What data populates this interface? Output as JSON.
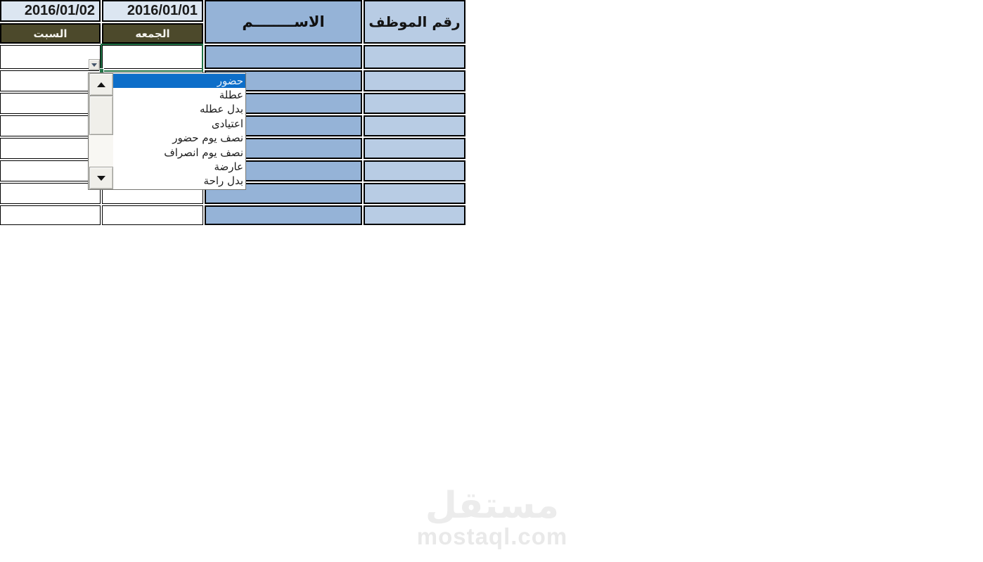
{
  "table": {
    "employee_number_header": "رقم الموظف",
    "name_header": "الاســــــــم",
    "day1": {
      "date": "2016/01/01",
      "name": "الجمعه"
    },
    "day2": {
      "date": "2016/01/02",
      "name": "السبت"
    },
    "data_rows": 8
  },
  "dropdown": {
    "selected_index": 0,
    "items": [
      {
        "label": "حضور"
      },
      {
        "label": "عطلة"
      },
      {
        "label": "بدل عطله"
      },
      {
        "label": "اعتيادى"
      },
      {
        "label": "نصف يوم حضور"
      },
      {
        "label": "نصف يوم انصراف"
      },
      {
        "label": "عارضة"
      },
      {
        "label": "بدل راحة"
      }
    ]
  },
  "watermark": {
    "logo_text": "مستقل",
    "domain": "mostaql.com"
  },
  "colors": {
    "name_column": "#95B3D7",
    "employee_column": "#B8CCE4",
    "date_header": "#DCE6F1",
    "day_header": "#4C492B",
    "highlight": "#0D6EC9",
    "selection_green": "#217346"
  }
}
